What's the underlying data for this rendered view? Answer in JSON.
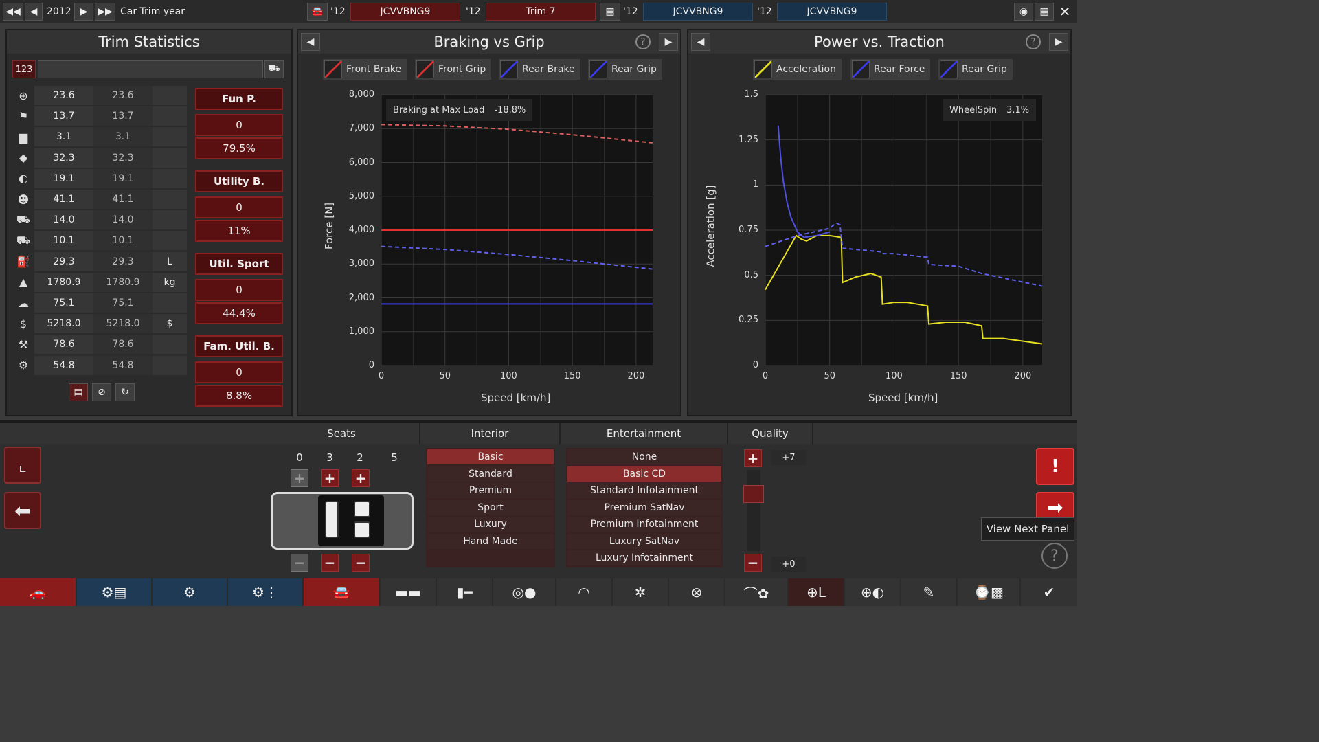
{
  "topbar": {
    "year": "2012",
    "year_label": "Car Trim year",
    "y1": "'12",
    "vin1": "JCVVBNG9",
    "y2": "'12",
    "trim": "Trim 7",
    "y3": "'12",
    "vin2": "JCVVBNG9",
    "y4": "'12",
    "vin3": "JCVVBNG9"
  },
  "trim_stats": {
    "title": "Trim Statistics",
    "filter_value": "123",
    "rows": [
      {
        "icon": "steering-icon",
        "v1": "23.6",
        "v2": "23.6",
        "u": ""
      },
      {
        "icon": "race-flag-icon",
        "v1": "13.7",
        "v2": "13.7",
        "u": ""
      },
      {
        "icon": "seat-icon",
        "v1": "3.1",
        "v2": "3.1",
        "u": ""
      },
      {
        "icon": "prestige-icon",
        "v1": "32.3",
        "v2": "32.3",
        "u": ""
      },
      {
        "icon": "safety-icon",
        "v1": "19.1",
        "v2": "19.1",
        "u": ""
      },
      {
        "icon": "passengers-icon",
        "v1": "41.1",
        "v2": "41.1",
        "u": ""
      },
      {
        "icon": "cargo-car-icon",
        "v1": "14.0",
        "v2": "14.0",
        "u": ""
      },
      {
        "icon": "offroad-car-icon",
        "v1": "10.1",
        "v2": "10.1",
        "u": ""
      },
      {
        "icon": "fuel-icon",
        "v1": "29.3",
        "v2": "29.3",
        "u": "L"
      },
      {
        "icon": "weight-icon",
        "v1": "1780.9",
        "v2": "1780.9",
        "u": "kg"
      },
      {
        "icon": "emissions-icon",
        "v1": "75.1",
        "v2": "75.1",
        "u": ""
      },
      {
        "icon": "cost-icon",
        "v1": "5218.0",
        "v2": "5218.0",
        "u": "$"
      },
      {
        "icon": "service-icon",
        "v1": "78.6",
        "v2": "78.6",
        "u": ""
      },
      {
        "icon": "reliability-icon",
        "v1": "54.8",
        "v2": "54.8",
        "u": ""
      }
    ],
    "categories": [
      {
        "name": "Fun P.",
        "a": "0",
        "b": "79.5%"
      },
      {
        "name": "Utility B.",
        "a": "0",
        "b": "11%"
      },
      {
        "name": "Util. Sport",
        "a": "0",
        "b": "44.4%"
      },
      {
        "name": "Fam. Util. B.",
        "a": "0",
        "b": "8.8%"
      }
    ]
  },
  "braking": {
    "title": "Braking vs Grip",
    "legend": [
      "Front Brake",
      "Front Grip",
      "Rear Brake",
      "Rear Grip"
    ],
    "legend_colors": [
      "#e03030",
      "#e03030",
      "#3a3aee",
      "#3a3aee"
    ],
    "annotation_label": "Braking at Max Load",
    "annotation_value": "-18.8%"
  },
  "power": {
    "title": "Power vs. Traction",
    "legend": [
      "Acceleration",
      "Rear Force",
      "Rear Grip"
    ],
    "legend_colors": [
      "#e6e020",
      "#3a3aee",
      "#3a3aee"
    ],
    "annotation_label": "WheelSpin",
    "annotation_value": "3.1%"
  },
  "chart_data": [
    {
      "type": "line",
      "title": "Braking vs Grip",
      "xlabel": "Speed [km/h]",
      "ylabel": "Force [N]",
      "xlim": [
        0,
        213
      ],
      "ylim": [
        0,
        8000
      ],
      "xticks": [
        "0",
        "50",
        "100",
        "150",
        "200"
      ],
      "yticks": [
        "0",
        "1,000",
        "2,000",
        "3,000",
        "4,000",
        "5,000",
        "6,000",
        "7,000",
        "8,000"
      ],
      "grid": true,
      "legend_position": "top",
      "series": [
        {
          "name": "Front Brake",
          "style": "solid",
          "color": "#e03030",
          "x": [
            0,
            213
          ],
          "y": [
            4000,
            4000
          ]
        },
        {
          "name": "Front Grip",
          "style": "dashed",
          "color": "#e06060",
          "x": [
            0,
            50,
            100,
            150,
            213
          ],
          "y": [
            7120,
            7080,
            6980,
            6820,
            6580
          ]
        },
        {
          "name": "Rear Brake",
          "style": "solid",
          "color": "#3a3aee",
          "x": [
            0,
            213
          ],
          "y": [
            1820,
            1820
          ]
        },
        {
          "name": "Rear Grip",
          "style": "dashed",
          "color": "#6060ee",
          "x": [
            0,
            50,
            100,
            150,
            213
          ],
          "y": [
            3520,
            3430,
            3280,
            3100,
            2850
          ]
        }
      ]
    },
    {
      "type": "line",
      "title": "Power vs. Traction",
      "xlabel": "Speed [km/h]",
      "ylabel": "Acceleration [g]",
      "xlim": [
        0,
        215
      ],
      "ylim": [
        0,
        1.5
      ],
      "xticks": [
        "0",
        "50",
        "100",
        "150",
        "200"
      ],
      "yticks": [
        "0",
        "0.25",
        "0.5",
        "0.75",
        "1",
        "1.25",
        "1.5"
      ],
      "grid": true,
      "legend_position": "top",
      "series": [
        {
          "name": "Acceleration",
          "style": "solid",
          "color": "#e6e020",
          "x": [
            0,
            24,
            28,
            32,
            40,
            50,
            59,
            60,
            70,
            82,
            90,
            91,
            100,
            110,
            126,
            127,
            140,
            155,
            168,
            169,
            185,
            215
          ],
          "y": [
            0.42,
            0.72,
            0.7,
            0.69,
            0.72,
            0.72,
            0.71,
            0.46,
            0.49,
            0.51,
            0.49,
            0.34,
            0.35,
            0.35,
            0.33,
            0.23,
            0.24,
            0.24,
            0.22,
            0.15,
            0.15,
            0.12
          ]
        },
        {
          "name": "Rear Force",
          "style": "solid",
          "color": "#5050e0",
          "x": [
            10,
            12,
            14,
            17,
            20,
            25,
            30,
            40,
            50
          ],
          "y": [
            1.33,
            1.15,
            1.02,
            0.9,
            0.82,
            0.74,
            0.71,
            0.72,
            0.74
          ]
        },
        {
          "name": "Rear Grip",
          "style": "dashed",
          "color": "#6060ee",
          "x": [
            0,
            25,
            50,
            55,
            58,
            60,
            90,
            91,
            100,
            126,
            127,
            150,
            168,
            215
          ],
          "y": [
            0.66,
            0.72,
            0.76,
            0.79,
            0.78,
            0.65,
            0.63,
            0.62,
            0.62,
            0.6,
            0.56,
            0.55,
            0.51,
            0.44
          ]
        }
      ]
    }
  ],
  "bottom": {
    "seats_title": "Seats",
    "seat_nums": [
      "0",
      "3",
      "2",
      "5"
    ],
    "interior_title": "Interior",
    "interior_options": [
      "Basic",
      "Standard",
      "Premium",
      "Sport",
      "Luxury",
      "Hand Made"
    ],
    "interior_selected": 0,
    "ent_title": "Entertainment",
    "ent_options": [
      "None",
      "Basic CD",
      "Standard Infotainment",
      "Premium SatNav",
      "Premium Infotainment",
      "Luxury SatNav",
      "Luxury Infotainment"
    ],
    "ent_selected": 1,
    "quality_title": "Quality",
    "quality_plus": "+7",
    "quality_minus": "+0",
    "tooltip": "View Next Panel"
  }
}
